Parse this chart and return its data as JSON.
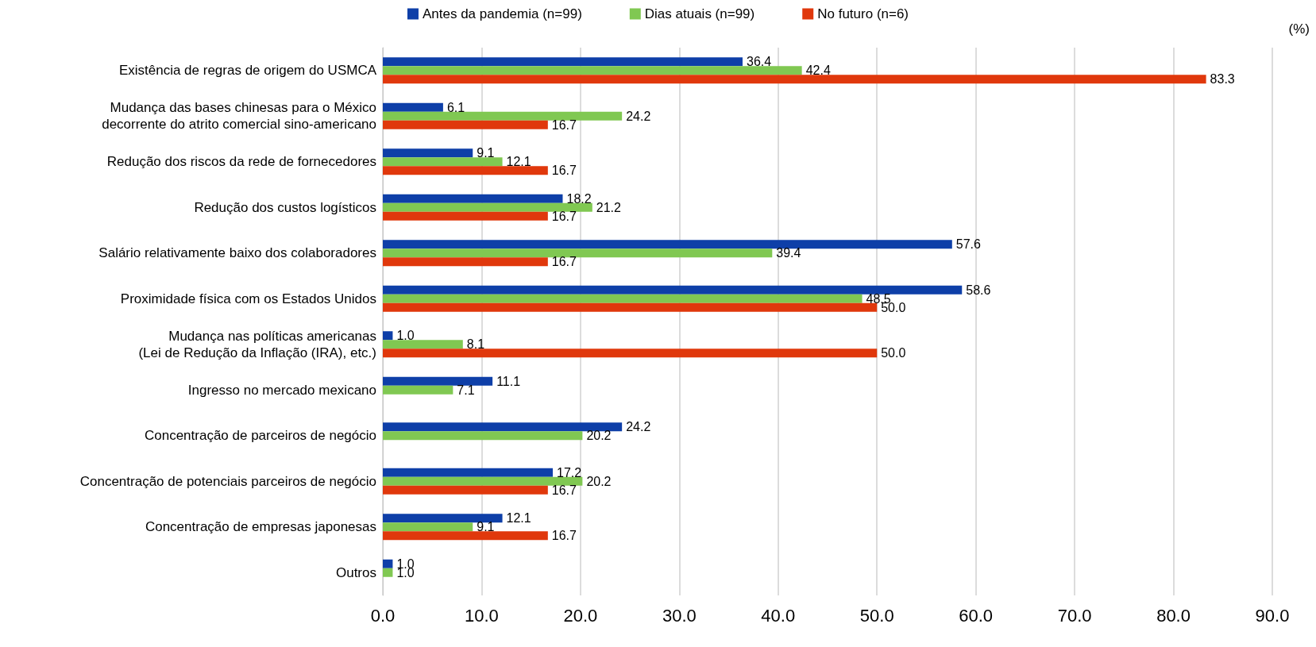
{
  "chart_data": {
    "type": "bar",
    "orientation": "horizontal",
    "categories": [
      "Existência de regras de origem do USMCA",
      "Mudança das bases chinesas para o México\ndecorrente do atrito comercial sino-americano",
      "Redução dos riscos da rede de fornecedores",
      "Redução dos custos logísticos",
      "Salário relativamente baixo dos colaboradores",
      "Proximidade física com os Estados Unidos",
      "Mudança nas políticas americanas\n(Lei de Redução da Inflação (IRA), etc.)",
      "Ingresso no mercado mexicano",
      "Concentração de parceiros de negócio",
      "Concentração de potenciais parceiros de negócio",
      "Concentração de empresas japonesas",
      "Outros"
    ],
    "series": [
      {
        "name": "Antes da pandemia (n=99)",
        "color": "#0e3fa8",
        "values": [
          36.4,
          6.1,
          9.1,
          18.2,
          57.6,
          58.6,
          1.0,
          11.1,
          24.2,
          17.2,
          12.1,
          1.0
        ],
        "value_labels": [
          "36.4",
          "6.1",
          "9.1",
          "18.2",
          "57.6",
          "58.6",
          "1.0",
          "11.1",
          "24.2",
          "17.2",
          "12.1",
          "1.0"
        ]
      },
      {
        "name": "Dias atuais (n=99)",
        "color": "#80c852",
        "values": [
          42.4,
          24.2,
          12.1,
          21.2,
          39.4,
          48.5,
          8.1,
          7.1,
          20.2,
          20.2,
          9.1,
          1.0
        ],
        "value_labels": [
          "42.4",
          "24.2",
          "12.1",
          "21.2",
          "39.4",
          "48.5",
          "8.1",
          "7.1",
          "20.2",
          "20.2",
          "9.1",
          "1.0"
        ]
      },
      {
        "name": "No futuro (n=6)",
        "color": "#e0380c",
        "values": [
          83.3,
          16.7,
          16.7,
          16.7,
          16.7,
          50.0,
          50.0,
          null,
          null,
          16.7,
          16.7,
          null
        ],
        "value_labels": [
          "83.3",
          "16.7",
          "16.7",
          "16.7",
          "16.7",
          "50.0",
          "50.0",
          null,
          null,
          "16.7",
          "16.7",
          null
        ]
      }
    ],
    "xlim": [
      0,
      90
    ],
    "xticks": [
      {
        "value": 0,
        "label": "0.0"
      },
      {
        "value": 10,
        "label": "10.0"
      },
      {
        "value": 20,
        "label": "20.0"
      },
      {
        "value": 30,
        "label": "30.0"
      },
      {
        "value": 40,
        "label": "40.0"
      },
      {
        "value": 50,
        "label": "50.0"
      },
      {
        "value": 60,
        "label": "60.0"
      },
      {
        "value": 70,
        "label": "70.0"
      },
      {
        "value": 80,
        "label": "80.0"
      },
      {
        "value": 90,
        "label": "90.0"
      }
    ],
    "annotations": [
      "(%)"
    ],
    "grid": "x",
    "legend": "top"
  }
}
